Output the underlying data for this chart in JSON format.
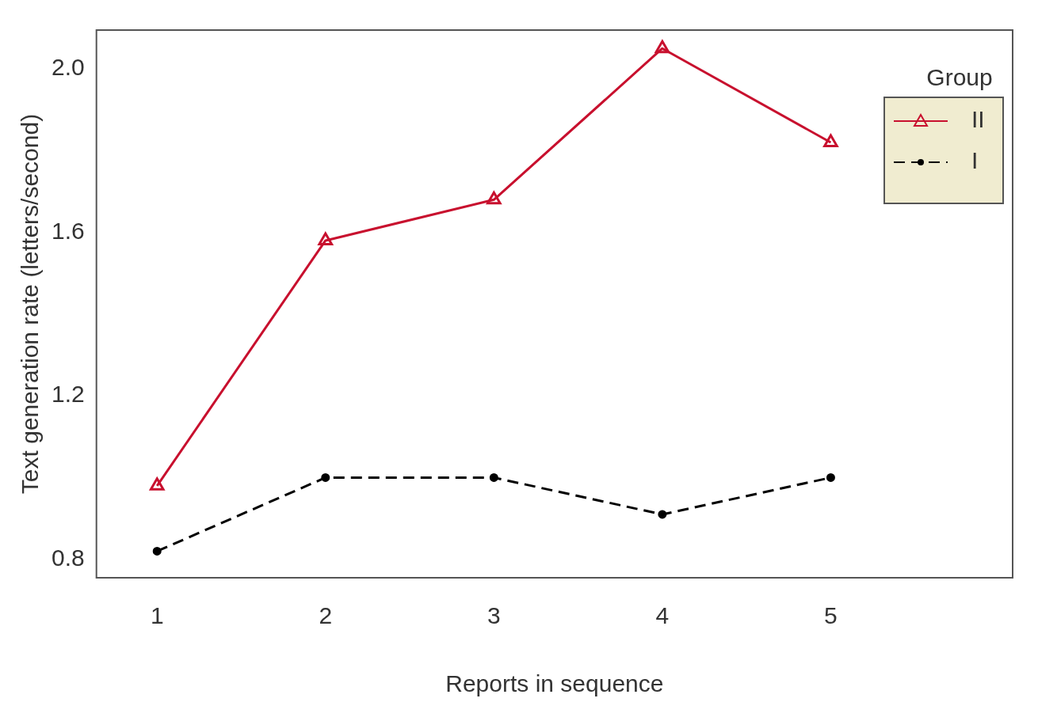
{
  "chart_data": {
    "type": "line",
    "xlabel": "Reports in sequence",
    "ylabel": "Text generation rate (letters/second)",
    "legend_title": "Group",
    "x": [
      1,
      2,
      3,
      4,
      5
    ],
    "series": [
      {
        "name": "II",
        "color": "#c8102e",
        "values": [
          0.98,
          1.58,
          1.68,
          2.05,
          1.82
        ],
        "marker": "triangle",
        "line_style": "solid"
      },
      {
        "name": "I",
        "color": "#000000",
        "values": [
          0.82,
          1.0,
          1.0,
          0.91,
          1.0
        ],
        "marker": "circle",
        "line_style": "dashed"
      }
    ],
    "xlim": [
      0.64,
      6.08
    ],
    "xticks": [
      1,
      2,
      3,
      4,
      5
    ],
    "ylim": [
      0.755,
      2.095
    ],
    "yticks": [
      0.8,
      1.2,
      1.6,
      {
        "value": 2,
        "label": "2.0"
      }
    ],
    "grid": false,
    "legend": "top right"
  }
}
